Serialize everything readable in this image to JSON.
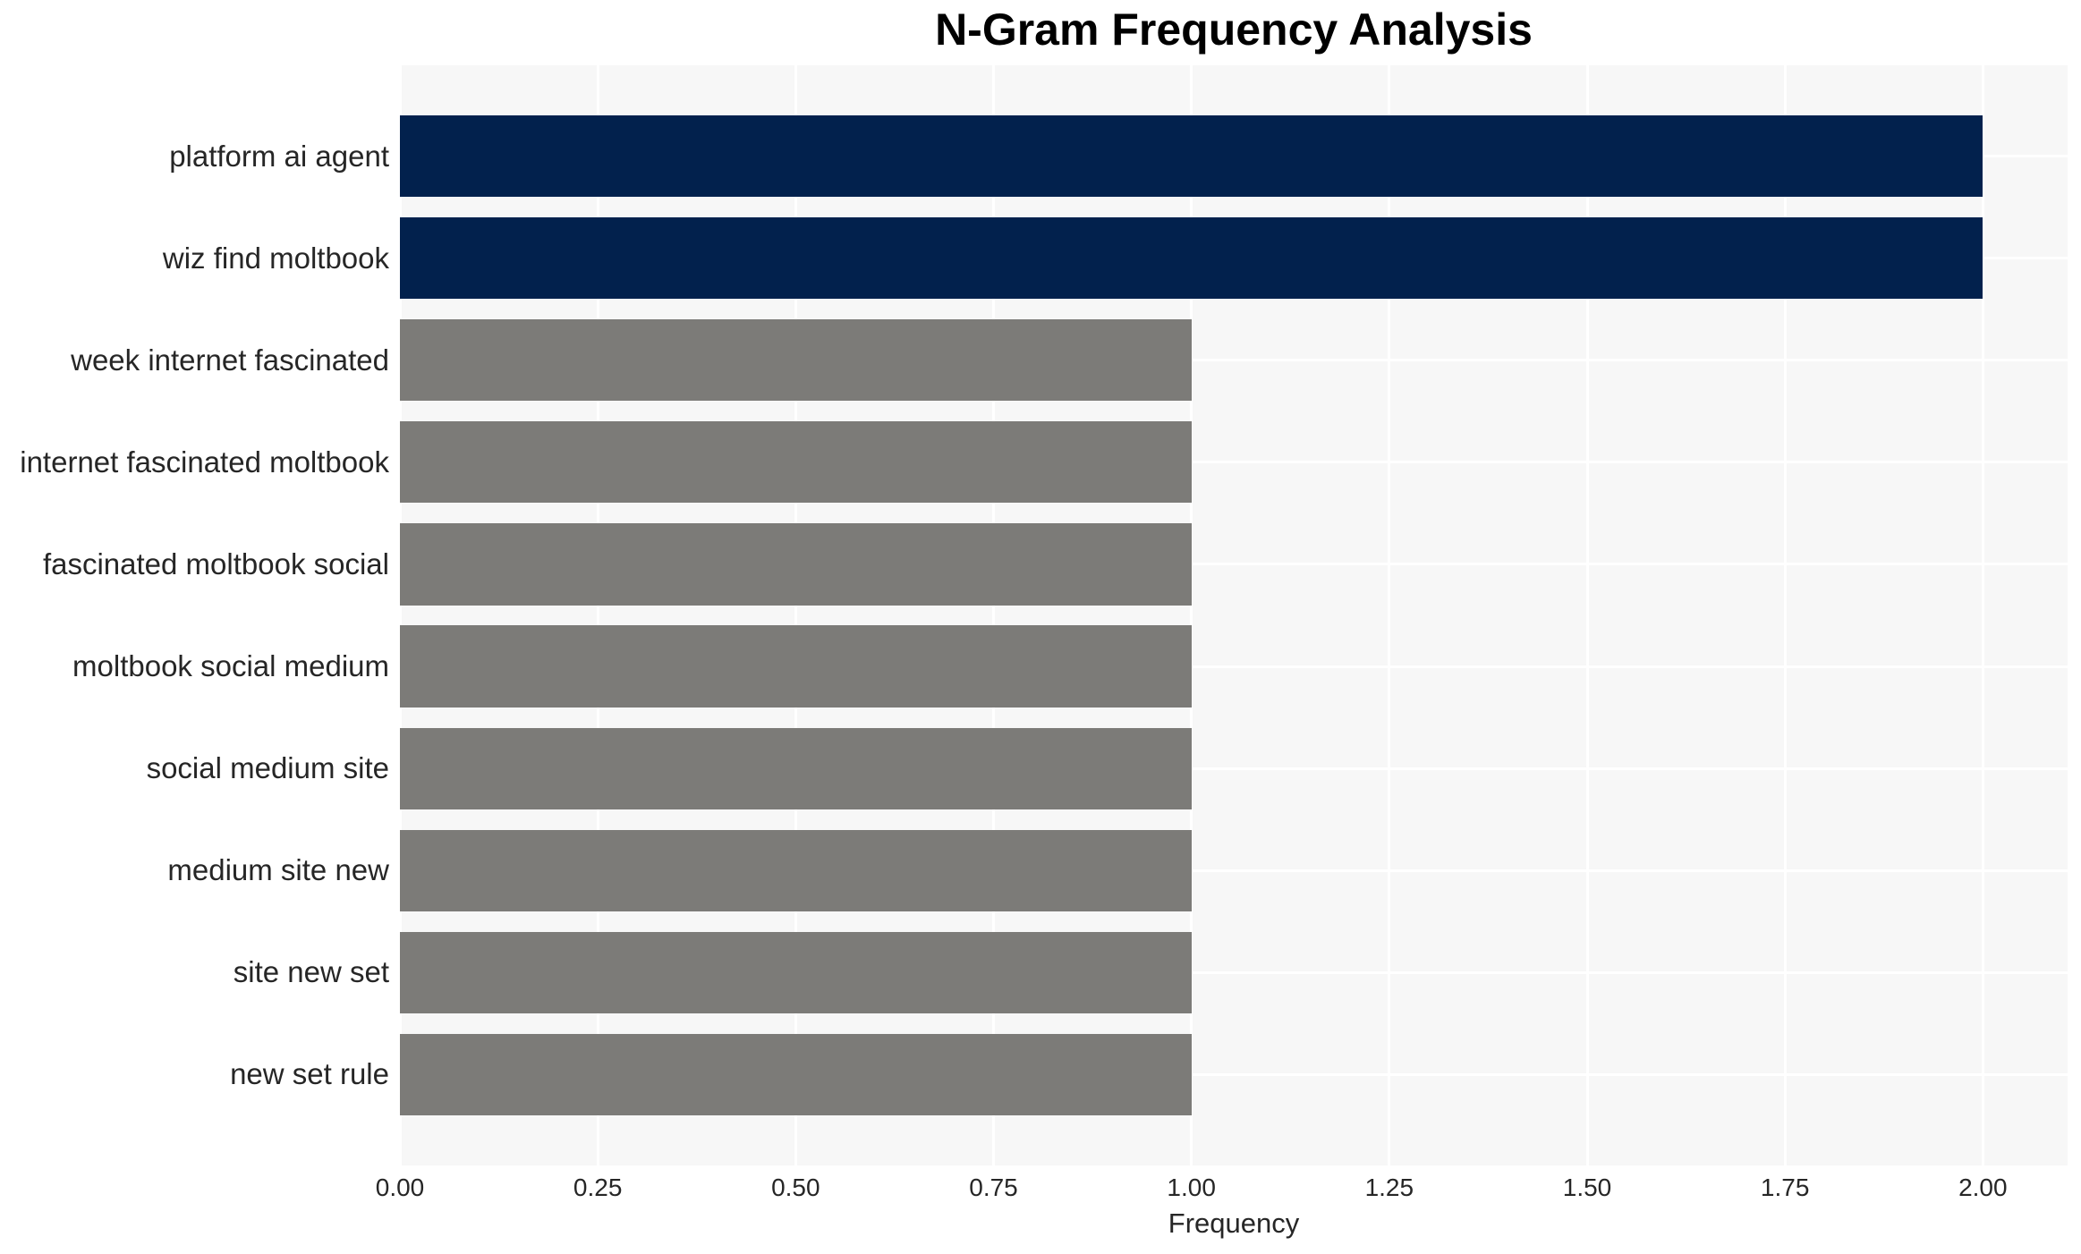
{
  "chart_data": {
    "type": "bar",
    "orientation": "horizontal",
    "title": "N-Gram Frequency Analysis",
    "xlabel": "Frequency",
    "ylabel": "",
    "categories": [
      "platform ai agent",
      "wiz find moltbook",
      "week internet fascinated",
      "internet fascinated moltbook",
      "fascinated moltbook social",
      "moltbook social medium",
      "social medium site",
      "medium site new",
      "site new set",
      "new set rule"
    ],
    "values": [
      2,
      2,
      1,
      1,
      1,
      1,
      1,
      1,
      1,
      1
    ],
    "xlim": [
      0,
      2.107
    ],
    "xticks": {
      "values": [
        0,
        0.25,
        0.5,
        0.75,
        1.0,
        1.25,
        1.5,
        1.75,
        2.0
      ],
      "labels": [
        "0.00",
        "0.25",
        "0.50",
        "0.75",
        "1.00",
        "1.25",
        "1.50",
        "1.75",
        "2.00"
      ]
    },
    "grid": true,
    "legend": false,
    "highlight_threshold": 2,
    "colors": {
      "highlight_bar": "#02214D",
      "default_bar": "#7C7B78",
      "plot_background": "#F7F7F7",
      "gridline": "#FFFFFF",
      "tick_text": "#262626",
      "title_text": "#000000"
    }
  }
}
